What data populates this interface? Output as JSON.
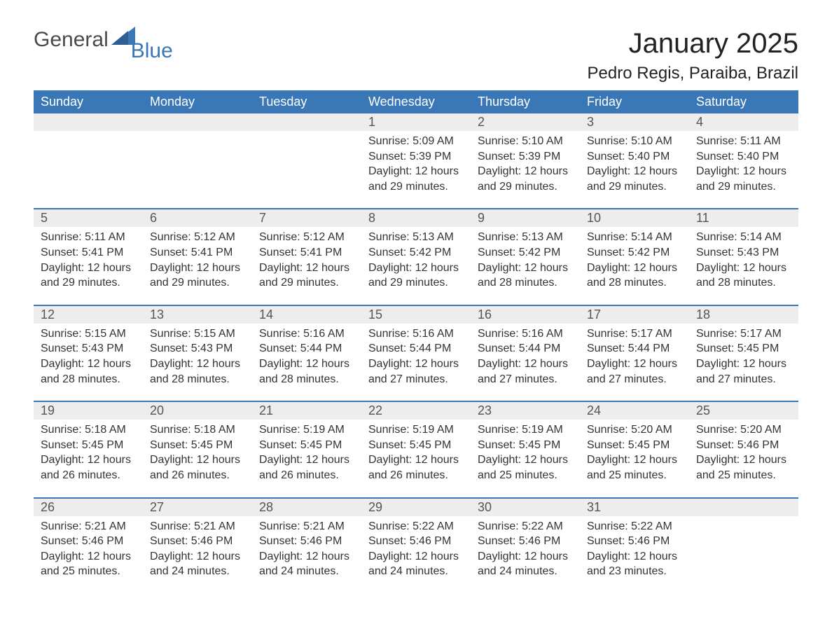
{
  "logo": {
    "word1": "General",
    "word2": "Blue"
  },
  "title": "January 2025",
  "location": "Pedro Regis, Paraiba, Brazil",
  "colors": {
    "header_bg": "#3a77b7",
    "header_text": "#ffffff",
    "daynum_bg": "#ededed",
    "daynum_text": "#555555",
    "body_text": "#333333",
    "rule": "#3a77b7",
    "page_bg": "#ffffff"
  },
  "weekdays": [
    "Sunday",
    "Monday",
    "Tuesday",
    "Wednesday",
    "Thursday",
    "Friday",
    "Saturday"
  ],
  "weeks": [
    [
      null,
      null,
      null,
      {
        "day": "1",
        "sunrise": "Sunrise: 5:09 AM",
        "sunset": "Sunset: 5:39 PM",
        "daylight1": "Daylight: 12 hours",
        "daylight2": "and 29 minutes."
      },
      {
        "day": "2",
        "sunrise": "Sunrise: 5:10 AM",
        "sunset": "Sunset: 5:39 PM",
        "daylight1": "Daylight: 12 hours",
        "daylight2": "and 29 minutes."
      },
      {
        "day": "3",
        "sunrise": "Sunrise: 5:10 AM",
        "sunset": "Sunset: 5:40 PM",
        "daylight1": "Daylight: 12 hours",
        "daylight2": "and 29 minutes."
      },
      {
        "day": "4",
        "sunrise": "Sunrise: 5:11 AM",
        "sunset": "Sunset: 5:40 PM",
        "daylight1": "Daylight: 12 hours",
        "daylight2": "and 29 minutes."
      }
    ],
    [
      {
        "day": "5",
        "sunrise": "Sunrise: 5:11 AM",
        "sunset": "Sunset: 5:41 PM",
        "daylight1": "Daylight: 12 hours",
        "daylight2": "and 29 minutes."
      },
      {
        "day": "6",
        "sunrise": "Sunrise: 5:12 AM",
        "sunset": "Sunset: 5:41 PM",
        "daylight1": "Daylight: 12 hours",
        "daylight2": "and 29 minutes."
      },
      {
        "day": "7",
        "sunrise": "Sunrise: 5:12 AM",
        "sunset": "Sunset: 5:41 PM",
        "daylight1": "Daylight: 12 hours",
        "daylight2": "and 29 minutes."
      },
      {
        "day": "8",
        "sunrise": "Sunrise: 5:13 AM",
        "sunset": "Sunset: 5:42 PM",
        "daylight1": "Daylight: 12 hours",
        "daylight2": "and 29 minutes."
      },
      {
        "day": "9",
        "sunrise": "Sunrise: 5:13 AM",
        "sunset": "Sunset: 5:42 PM",
        "daylight1": "Daylight: 12 hours",
        "daylight2": "and 28 minutes."
      },
      {
        "day": "10",
        "sunrise": "Sunrise: 5:14 AM",
        "sunset": "Sunset: 5:42 PM",
        "daylight1": "Daylight: 12 hours",
        "daylight2": "and 28 minutes."
      },
      {
        "day": "11",
        "sunrise": "Sunrise: 5:14 AM",
        "sunset": "Sunset: 5:43 PM",
        "daylight1": "Daylight: 12 hours",
        "daylight2": "and 28 minutes."
      }
    ],
    [
      {
        "day": "12",
        "sunrise": "Sunrise: 5:15 AM",
        "sunset": "Sunset: 5:43 PM",
        "daylight1": "Daylight: 12 hours",
        "daylight2": "and 28 minutes."
      },
      {
        "day": "13",
        "sunrise": "Sunrise: 5:15 AM",
        "sunset": "Sunset: 5:43 PM",
        "daylight1": "Daylight: 12 hours",
        "daylight2": "and 28 minutes."
      },
      {
        "day": "14",
        "sunrise": "Sunrise: 5:16 AM",
        "sunset": "Sunset: 5:44 PM",
        "daylight1": "Daylight: 12 hours",
        "daylight2": "and 28 minutes."
      },
      {
        "day": "15",
        "sunrise": "Sunrise: 5:16 AM",
        "sunset": "Sunset: 5:44 PM",
        "daylight1": "Daylight: 12 hours",
        "daylight2": "and 27 minutes."
      },
      {
        "day": "16",
        "sunrise": "Sunrise: 5:16 AM",
        "sunset": "Sunset: 5:44 PM",
        "daylight1": "Daylight: 12 hours",
        "daylight2": "and 27 minutes."
      },
      {
        "day": "17",
        "sunrise": "Sunrise: 5:17 AM",
        "sunset": "Sunset: 5:44 PM",
        "daylight1": "Daylight: 12 hours",
        "daylight2": "and 27 minutes."
      },
      {
        "day": "18",
        "sunrise": "Sunrise: 5:17 AM",
        "sunset": "Sunset: 5:45 PM",
        "daylight1": "Daylight: 12 hours",
        "daylight2": "and 27 minutes."
      }
    ],
    [
      {
        "day": "19",
        "sunrise": "Sunrise: 5:18 AM",
        "sunset": "Sunset: 5:45 PM",
        "daylight1": "Daylight: 12 hours",
        "daylight2": "and 26 minutes."
      },
      {
        "day": "20",
        "sunrise": "Sunrise: 5:18 AM",
        "sunset": "Sunset: 5:45 PM",
        "daylight1": "Daylight: 12 hours",
        "daylight2": "and 26 minutes."
      },
      {
        "day": "21",
        "sunrise": "Sunrise: 5:19 AM",
        "sunset": "Sunset: 5:45 PM",
        "daylight1": "Daylight: 12 hours",
        "daylight2": "and 26 minutes."
      },
      {
        "day": "22",
        "sunrise": "Sunrise: 5:19 AM",
        "sunset": "Sunset: 5:45 PM",
        "daylight1": "Daylight: 12 hours",
        "daylight2": "and 26 minutes."
      },
      {
        "day": "23",
        "sunrise": "Sunrise: 5:19 AM",
        "sunset": "Sunset: 5:45 PM",
        "daylight1": "Daylight: 12 hours",
        "daylight2": "and 25 minutes."
      },
      {
        "day": "24",
        "sunrise": "Sunrise: 5:20 AM",
        "sunset": "Sunset: 5:45 PM",
        "daylight1": "Daylight: 12 hours",
        "daylight2": "and 25 minutes."
      },
      {
        "day": "25",
        "sunrise": "Sunrise: 5:20 AM",
        "sunset": "Sunset: 5:46 PM",
        "daylight1": "Daylight: 12 hours",
        "daylight2": "and 25 minutes."
      }
    ],
    [
      {
        "day": "26",
        "sunrise": "Sunrise: 5:21 AM",
        "sunset": "Sunset: 5:46 PM",
        "daylight1": "Daylight: 12 hours",
        "daylight2": "and 25 minutes."
      },
      {
        "day": "27",
        "sunrise": "Sunrise: 5:21 AM",
        "sunset": "Sunset: 5:46 PM",
        "daylight1": "Daylight: 12 hours",
        "daylight2": "and 24 minutes."
      },
      {
        "day": "28",
        "sunrise": "Sunrise: 5:21 AM",
        "sunset": "Sunset: 5:46 PM",
        "daylight1": "Daylight: 12 hours",
        "daylight2": "and 24 minutes."
      },
      {
        "day": "29",
        "sunrise": "Sunrise: 5:22 AM",
        "sunset": "Sunset: 5:46 PM",
        "daylight1": "Daylight: 12 hours",
        "daylight2": "and 24 minutes."
      },
      {
        "day": "30",
        "sunrise": "Sunrise: 5:22 AM",
        "sunset": "Sunset: 5:46 PM",
        "daylight1": "Daylight: 12 hours",
        "daylight2": "and 24 minutes."
      },
      {
        "day": "31",
        "sunrise": "Sunrise: 5:22 AM",
        "sunset": "Sunset: 5:46 PM",
        "daylight1": "Daylight: 12 hours",
        "daylight2": "and 23 minutes."
      },
      null
    ]
  ]
}
